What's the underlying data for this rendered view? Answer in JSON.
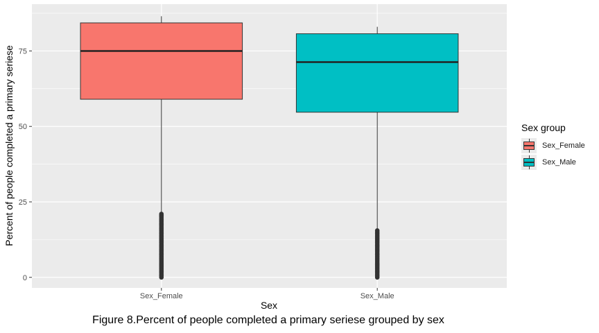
{
  "chart_data": {
    "type": "boxplot",
    "title": "",
    "xlabel": "Sex",
    "ylabel": "Percent of people completed a primary seriese",
    "caption": "Figure 8.Percent of people completed a primary seriese grouped by sex",
    "ylim": [
      -3.5,
      90.5
    ],
    "yticks": [
      0,
      25,
      50,
      75
    ],
    "grid": true,
    "legend": {
      "title": "Sex group",
      "position": "right"
    },
    "categories": [
      "Sex_Female",
      "Sex_Male"
    ],
    "boxes": [
      {
        "name": "Sex_Female",
        "color": "#F8766D",
        "whisker_low": 21,
        "q1": 59,
        "median": 75,
        "q3": 84.3,
        "whisker_high": 86.5,
        "outliers": [
          0,
          0.5,
          1,
          1.5,
          2,
          2.5,
          3,
          3.5,
          4,
          4.5,
          5,
          5.5,
          6,
          6.5,
          7,
          7.5,
          8,
          8.5,
          9,
          9.5,
          10,
          10.5,
          11,
          11.5,
          12,
          12.5,
          13,
          13.5,
          14,
          14.5,
          15,
          15.5,
          16,
          16.5,
          17,
          17.5,
          18,
          18.5,
          19,
          19.5,
          20,
          20.5,
          21
        ]
      },
      {
        "name": "Sex_Male",
        "color": "#00BFC4",
        "whisker_low": 15.7,
        "q1": 54.7,
        "median": 71.3,
        "q3": 80.7,
        "whisker_high": 83,
        "outliers": [
          0,
          0.5,
          1,
          1.5,
          2,
          2.5,
          3,
          3.5,
          4,
          4.5,
          5,
          5.5,
          6,
          6.5,
          7,
          7.5,
          8,
          8.5,
          9,
          9.5,
          10,
          10.5,
          11,
          11.5,
          12,
          12.5,
          13,
          13.5,
          14,
          14.5,
          15,
          15.5
        ]
      }
    ]
  }
}
